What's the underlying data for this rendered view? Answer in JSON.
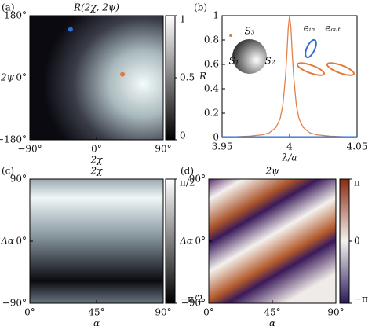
{
  "chart_data": [
    {
      "type": "heatmap",
      "panel": "(a)",
      "title": "R(2χ, 2ψ)",
      "xlabel": "2χ",
      "ylabel": "2ψ",
      "xlim": [
        -90,
        90
      ],
      "xticks": [
        {
          "value": -90,
          "label": "−90°"
        },
        {
          "value": 0,
          "label": "0°"
        },
        {
          "value": 90,
          "label": "90°"
        }
      ],
      "ylim": [
        -180,
        180
      ],
      "yticks": [
        {
          "value": -180,
          "label": "−180°"
        },
        {
          "value": 0,
          "label": "0°"
        },
        {
          "value": 180,
          "label": "180°"
        }
      ],
      "clim": [
        0,
        1
      ],
      "cticks": [
        0,
        0.5,
        1
      ],
      "points": [
        {
          "x": -35,
          "y": 140,
          "color": "#2b6fd6"
        },
        {
          "x": 35,
          "y": 10,
          "color": "#e07a3c"
        }
      ]
    },
    {
      "type": "line",
      "panel": "(b)",
      "xlabel": "λ/a",
      "ylabel": "R",
      "xlim": [
        3.95,
        4.05
      ],
      "xticks": [
        3.95,
        4,
        4.05
      ],
      "ylim": [
        0,
        1
      ],
      "yticks": [
        0,
        0.2,
        0.4,
        0.6,
        0.8,
        1
      ],
      "series": [
        {
          "color": "#e0804a",
          "x": [
            3.95,
            3.96,
            3.97,
            3.98,
            3.985,
            3.99,
            3.993,
            3.995,
            3.997,
            3.998,
            3.999,
            4,
            4.001,
            4.002,
            4.003,
            4.005,
            4.007,
            4.01,
            4.015,
            4.02,
            4.03,
            4.04,
            4.05
          ],
          "values": [
            0.004,
            0.006,
            0.01,
            0.022,
            0.038,
            0.083,
            0.155,
            0.265,
            0.5,
            0.69,
            0.9,
            1,
            0.9,
            0.69,
            0.5,
            0.265,
            0.155,
            0.083,
            0.038,
            0.022,
            0.01,
            0.006,
            0.004
          ]
        },
        {
          "color": "#2b6fd6",
          "x": [
            3.95,
            4.05
          ],
          "values": [
            0.005,
            0.005
          ]
        }
      ],
      "inset_labels": [
        "S₃",
        "S₁",
        "S₂",
        "eᵢₙ",
        "eₒᵤₜ"
      ]
    },
    {
      "type": "heatmap",
      "panel": "(c)",
      "title": "2χ",
      "xlabel": "α",
      "ylabel": "Δα",
      "xlim": [
        0,
        90
      ],
      "xticks": [
        {
          "value": 0,
          "label": "0°"
        },
        {
          "value": 45,
          "label": "45°"
        },
        {
          "value": 90,
          "label": "90°"
        }
      ],
      "ylim": [
        -90,
        90
      ],
      "yticks": [
        {
          "value": -90,
          "label": "−90°"
        },
        {
          "value": 0,
          "label": "0°"
        },
        {
          "value": 90,
          "label": "90°"
        }
      ],
      "clim": [
        -1.5708,
        1.5708
      ],
      "cticks": [
        {
          "value": -1.5708,
          "label": "−π/2"
        },
        {
          "value": 1.5708,
          "label": "π/2"
        }
      ]
    },
    {
      "type": "heatmap",
      "panel": "(d)",
      "title": "2ψ",
      "xlabel": "α",
      "ylabel": "Δα",
      "xlim": [
        0,
        90
      ],
      "xticks": [
        {
          "value": 0,
          "label": "0°"
        },
        {
          "value": 45,
          "label": "45°"
        },
        {
          "value": 90,
          "label": "90°"
        }
      ],
      "ylim": [
        -90,
        90
      ],
      "yticks": [
        {
          "value": -90,
          "label": "−90°"
        },
        {
          "value": 0,
          "label": "0°"
        },
        {
          "value": 90,
          "label": "90°"
        }
      ],
      "clim": [
        -3.1416,
        3.1416
      ],
      "cticks": [
        {
          "value": -3.1416,
          "label": "−π"
        },
        0,
        {
          "value": 3.1416,
          "label": "π"
        }
      ]
    }
  ]
}
